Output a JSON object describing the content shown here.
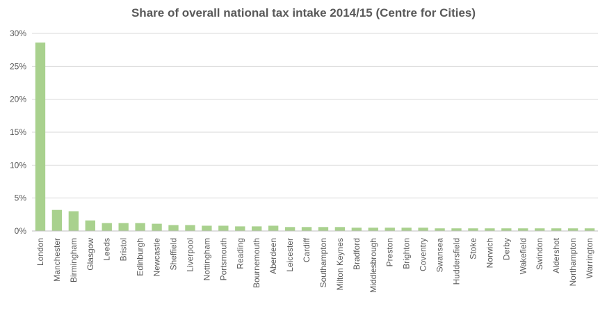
{
  "chart_data": {
    "type": "bar",
    "title": "Share of overall national tax intake 2014/15 (Centre for Cities)",
    "xlabel": "",
    "ylabel": "",
    "ylim": [
      0,
      30
    ],
    "yticks": [
      "0%",
      "5%",
      "10%",
      "15%",
      "20%",
      "25%",
      "30%"
    ],
    "grid": true,
    "bar_color": "#a9d18e",
    "categories": [
      "London",
      "Manchester",
      "Birmingham",
      "Glasgow",
      "Leeds",
      "Bristol",
      "Edinburgh",
      "Newcastle",
      "Sheffield",
      "Liverpool",
      "Nottingham",
      "Portsmouth",
      "Reading",
      "Bournemouth",
      "Aberdeen",
      "Leicester",
      "Cardiff",
      "Southampton",
      "Milton Keynes",
      "Bradford",
      "Middlesbrough",
      "Preston",
      "Brighton",
      "Coventry",
      "Swansea",
      "Huddersfield",
      "Stoke",
      "Norwich",
      "Derby",
      "Wakefield",
      "Swindon",
      "Aldershot",
      "Northampton",
      "Warrington"
    ],
    "values": [
      28.6,
      3.2,
      3.0,
      1.6,
      1.2,
      1.2,
      1.2,
      1.1,
      0.9,
      0.9,
      0.8,
      0.8,
      0.7,
      0.7,
      0.8,
      0.6,
      0.6,
      0.6,
      0.6,
      0.5,
      0.5,
      0.5,
      0.5,
      0.5,
      0.4,
      0.4,
      0.4,
      0.4,
      0.4,
      0.4,
      0.4,
      0.4,
      0.4,
      0.4
    ]
  }
}
